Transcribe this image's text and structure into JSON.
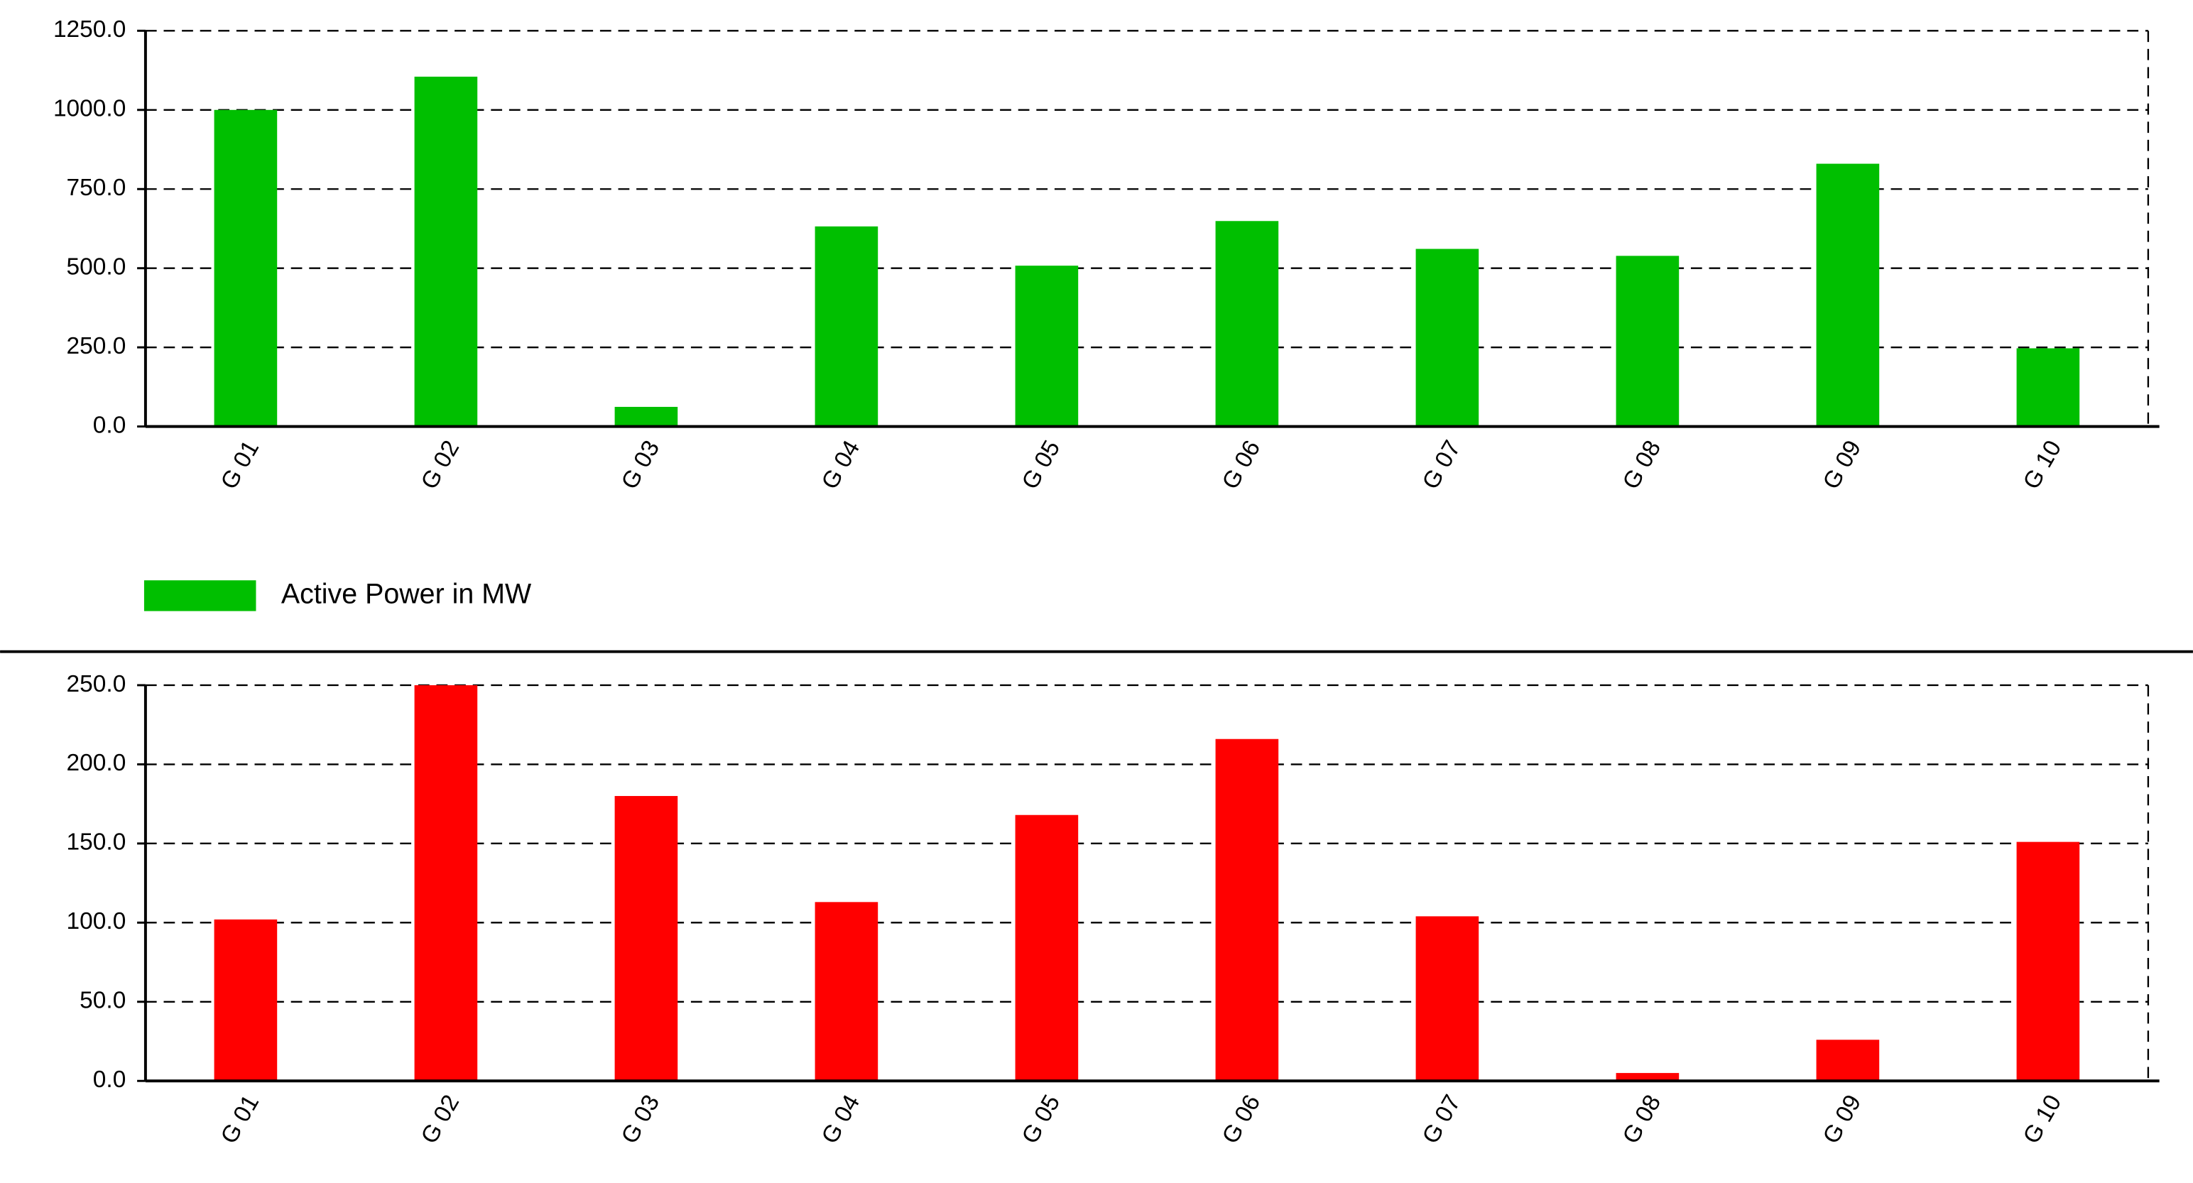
{
  "chart_data": [
    {
      "type": "bar",
      "categories": [
        "G 01",
        "G 02",
        "G 03",
        "G 04",
        "G 05",
        "G 06",
        "G 07",
        "G 08",
        "G 09",
        "G 10"
      ],
      "series": [
        {
          "name": "Active Power in MW",
          "color": "#00bf00",
          "values": [
            1000,
            1105,
            62,
            632,
            508,
            649,
            561,
            539,
            830,
            247
          ]
        }
      ],
      "ylim": [
        0,
        1250
      ],
      "yticks": [
        {
          "value": 0,
          "label": "0.0"
        },
        {
          "value": 250,
          "label": "250.0"
        },
        {
          "value": 500,
          "label": "500.0"
        },
        {
          "value": 750,
          "label": "750.0"
        },
        {
          "value": 1000,
          "label": "1000.0"
        },
        {
          "value": 1250,
          "label": "1250.0"
        }
      ],
      "grid": true,
      "legend": "bottom-left"
    },
    {
      "type": "bar",
      "categories": [
        "G 01",
        "G 02",
        "G 03",
        "G 04",
        "G 05",
        "G 06",
        "G 07",
        "G 08",
        "G 09",
        "G 10"
      ],
      "series": [
        {
          "color": "#ff0000",
          "values": [
            102,
            250,
            180,
            113,
            168,
            216,
            104,
            5,
            26,
            151
          ]
        }
      ],
      "ylim": [
        0,
        250
      ],
      "yticks": [
        {
          "value": 0,
          "label": "0.0"
        },
        {
          "value": 50,
          "label": "50.0"
        },
        {
          "value": 100,
          "label": "100.0"
        },
        {
          "value": 150,
          "label": "150.0"
        },
        {
          "value": 200,
          "label": "200.0"
        },
        {
          "value": 250,
          "label": "250.0"
        }
      ],
      "grid": true
    }
  ]
}
